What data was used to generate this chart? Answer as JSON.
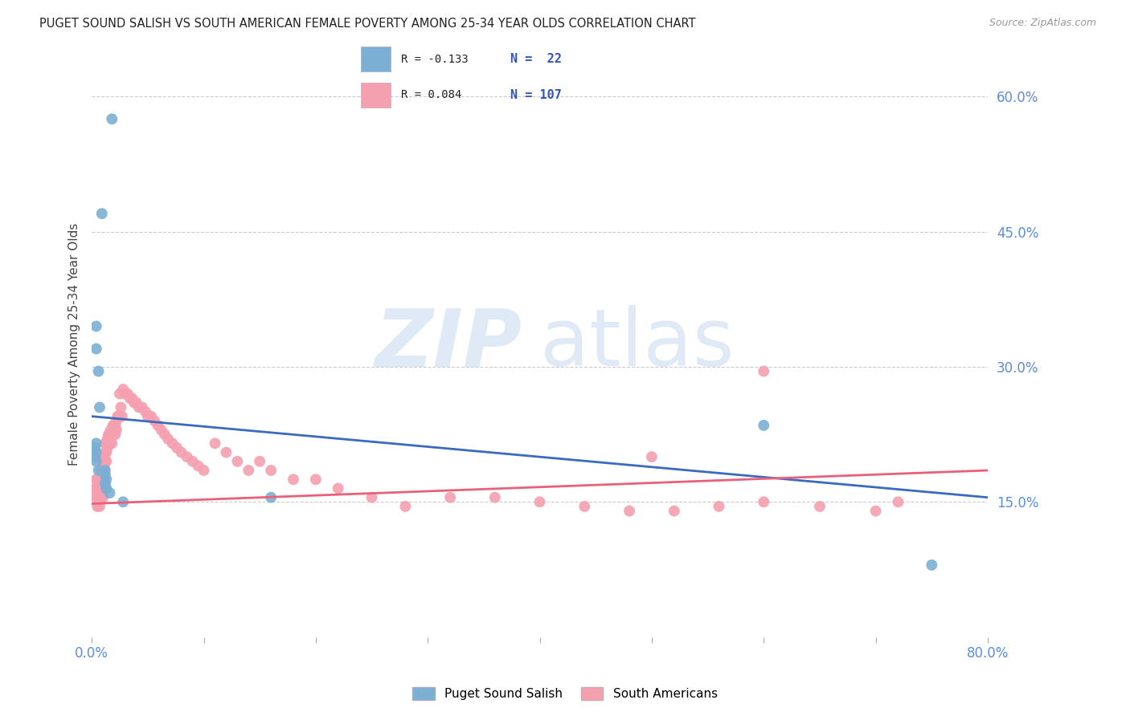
{
  "title": "PUGET SOUND SALISH VS SOUTH AMERICAN FEMALE POVERTY AMONG 25-34 YEAR OLDS CORRELATION CHART",
  "source": "Source: ZipAtlas.com",
  "ylabel": "Female Poverty Among 25-34 Year Olds",
  "xlim": [
    0.0,
    0.8
  ],
  "ylim": [
    0.0,
    0.65
  ],
  "ytick_positions": [
    0.15,
    0.3,
    0.45,
    0.6
  ],
  "ytick_labels": [
    "15.0%",
    "30.0%",
    "45.0%",
    "60.0%"
  ],
  "xtick_positions": [
    0.0,
    0.8
  ],
  "xtick_labels": [
    "0.0%",
    "80.0%"
  ],
  "grid_color": "#cccccc",
  "background_color": "#ffffff",
  "color_blue": "#7bafd4",
  "color_pink": "#f4a0b0",
  "color_blue_line": "#3a6bbf",
  "color_pink_line": "#e8607a",
  "color_axis_labels": "#5b8dd9",
  "blue_scatter_x": [
    0.018,
    0.009,
    0.004,
    0.004,
    0.006,
    0.007,
    0.004,
    0.003,
    0.004,
    0.003,
    0.004,
    0.006,
    0.012,
    0.012,
    0.013,
    0.012,
    0.013,
    0.016,
    0.028,
    0.6,
    0.75,
    0.16
  ],
  "blue_scatter_y": [
    0.575,
    0.47,
    0.345,
    0.32,
    0.295,
    0.255,
    0.215,
    0.21,
    0.205,
    0.2,
    0.195,
    0.185,
    0.185,
    0.18,
    0.175,
    0.17,
    0.165,
    0.16,
    0.15,
    0.235,
    0.08,
    0.155
  ],
  "pink_scatter_x": [
    0.003,
    0.003,
    0.004,
    0.004,
    0.005,
    0.005,
    0.005,
    0.005,
    0.006,
    0.006,
    0.007,
    0.007,
    0.007,
    0.007,
    0.008,
    0.008,
    0.008,
    0.008,
    0.009,
    0.009,
    0.009,
    0.009,
    0.01,
    0.01,
    0.01,
    0.01,
    0.01,
    0.011,
    0.011,
    0.011,
    0.012,
    0.012,
    0.012,
    0.013,
    0.013,
    0.013,
    0.014,
    0.014,
    0.015,
    0.015,
    0.016,
    0.016,
    0.017,
    0.017,
    0.018,
    0.018,
    0.019,
    0.019,
    0.02,
    0.02,
    0.021,
    0.021,
    0.022,
    0.022,
    0.023,
    0.024,
    0.025,
    0.026,
    0.027,
    0.028,
    0.03,
    0.032,
    0.034,
    0.036,
    0.038,
    0.04,
    0.042,
    0.045,
    0.048,
    0.05,
    0.053,
    0.056,
    0.059,
    0.062,
    0.065,
    0.068,
    0.072,
    0.076,
    0.08,
    0.085,
    0.09,
    0.095,
    0.1,
    0.11,
    0.12,
    0.13,
    0.14,
    0.15,
    0.16,
    0.18,
    0.2,
    0.22,
    0.25,
    0.28,
    0.32,
    0.36,
    0.4,
    0.44,
    0.48,
    0.52,
    0.56,
    0.6,
    0.65,
    0.7,
    0.72,
    0.6,
    0.5
  ],
  "pink_scatter_y": [
    0.165,
    0.155,
    0.175,
    0.165,
    0.175,
    0.165,
    0.155,
    0.145,
    0.17,
    0.16,
    0.175,
    0.165,
    0.155,
    0.145,
    0.185,
    0.175,
    0.165,
    0.155,
    0.185,
    0.175,
    0.165,
    0.155,
    0.195,
    0.185,
    0.175,
    0.165,
    0.155,
    0.2,
    0.19,
    0.18,
    0.215,
    0.205,
    0.195,
    0.215,
    0.205,
    0.195,
    0.22,
    0.21,
    0.225,
    0.215,
    0.225,
    0.215,
    0.23,
    0.22,
    0.225,
    0.215,
    0.235,
    0.225,
    0.235,
    0.225,
    0.235,
    0.225,
    0.24,
    0.23,
    0.245,
    0.245,
    0.27,
    0.255,
    0.245,
    0.275,
    0.27,
    0.27,
    0.265,
    0.265,
    0.26,
    0.26,
    0.255,
    0.255,
    0.25,
    0.245,
    0.245,
    0.24,
    0.235,
    0.23,
    0.225,
    0.22,
    0.215,
    0.21,
    0.205,
    0.2,
    0.195,
    0.19,
    0.185,
    0.215,
    0.205,
    0.195,
    0.185,
    0.195,
    0.185,
    0.175,
    0.175,
    0.165,
    0.155,
    0.145,
    0.155,
    0.155,
    0.15,
    0.145,
    0.14,
    0.14,
    0.145,
    0.15,
    0.145,
    0.14,
    0.15,
    0.295,
    0.2
  ],
  "blue_line_x": [
    0.0,
    0.8
  ],
  "blue_line_y_start": 0.245,
  "blue_line_y_end": 0.155,
  "pink_line_x": [
    0.0,
    0.8
  ],
  "pink_line_y_start": 0.148,
  "pink_line_y_end": 0.185
}
